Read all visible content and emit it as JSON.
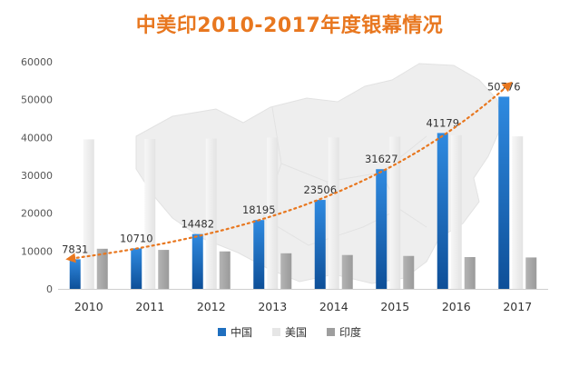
{
  "chart_data": {
    "type": "bar",
    "title": "中美印2010-2017年度银幕情况",
    "categories": [
      "2010",
      "2011",
      "2012",
      "2013",
      "2014",
      "2015",
      "2016",
      "2017"
    ],
    "series": [
      {
        "name": "中国",
        "values": [
          7831,
          10710,
          14482,
          18195,
          23506,
          31627,
          41179,
          50776
        ],
        "color": "#1f6fbf",
        "data_labels": true
      },
      {
        "name": "美国",
        "values": [
          39500,
          39600,
          39700,
          40000,
          40000,
          40200,
          40600,
          40300
        ],
        "color": "#ededed",
        "data_labels": false
      },
      {
        "name": "印度",
        "values": [
          10600,
          10300,
          9900,
          9400,
          8950,
          8700,
          8400,
          8300
        ],
        "color": "#a9a9a9",
        "data_labels": false
      }
    ],
    "trendline": {
      "series": "中国",
      "color": "#e8771f",
      "style": "dotted",
      "arrows": true
    },
    "ylim": [
      0,
      60000
    ],
    "yticks": [
      0,
      10000,
      20000,
      30000,
      40000,
      50000,
      60000
    ],
    "grid": false,
    "legend_position": "bottom",
    "xlabel": "",
    "ylabel": "",
    "background": "map-of-china"
  }
}
